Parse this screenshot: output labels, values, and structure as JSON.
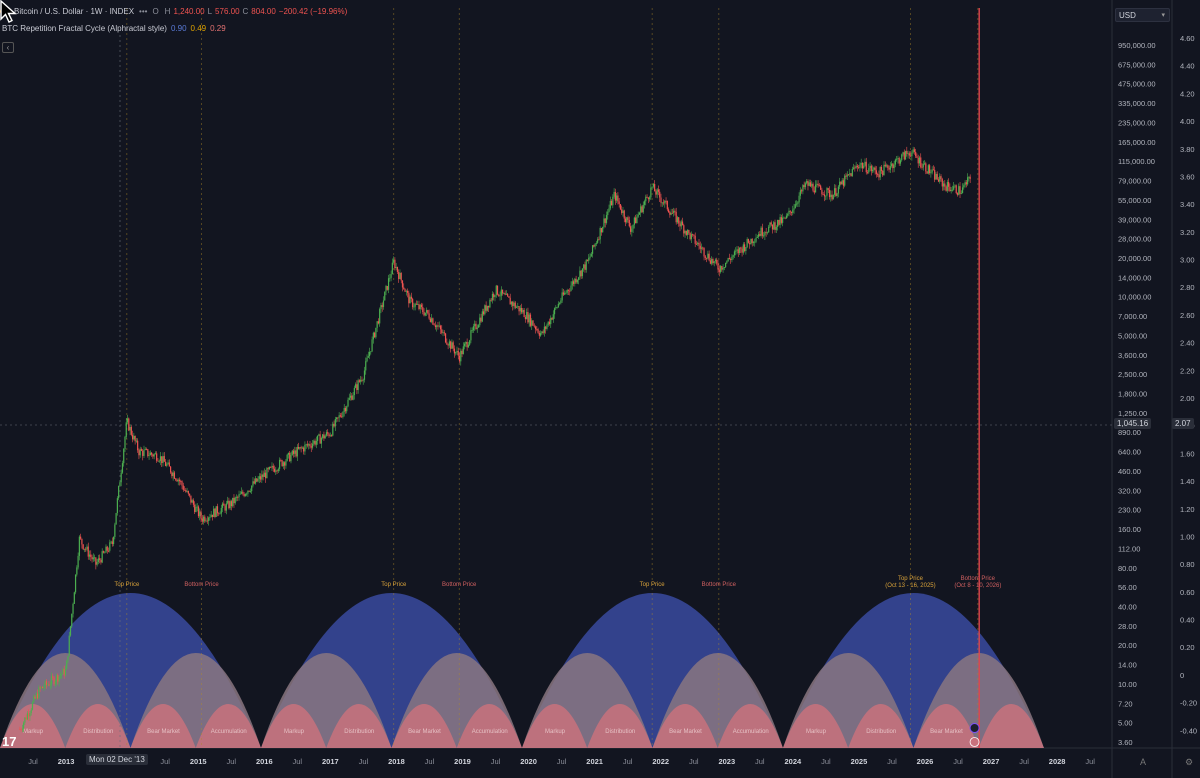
{
  "header": {
    "symbol": "Bitcoin / U.S. Dollar · 1W · INDEX",
    "more": "•••",
    "o_prefix": "O",
    "o_value": "",
    "h_prefix": "H",
    "h_value": "1,240.00",
    "l_prefix": "L",
    "l_value": "576.00",
    "c_prefix": "C",
    "c_value": "804.00",
    "change": "−200.42 (−19.96%)"
  },
  "indicator": {
    "name": "BTC Repetition Fractal Cycle (Alphractal style)",
    "v1": "0.90",
    "v2": "0.49",
    "v3": "0.29"
  },
  "currency": {
    "label": "USD"
  },
  "colors": {
    "background": "#121520",
    "up": "#4caf50",
    "down": "#ef5350",
    "blue_arc": "#3a4aa0",
    "mid_arc": "#8a7680",
    "pink_arc": "#c9727d",
    "guide": "#b08a28",
    "today_line": "#e0454e"
  },
  "crosshair": {
    "price_label": "1,045.16",
    "osc_label": "2.07",
    "date_label": "Mon 02 Dec '13"
  },
  "chart_data": {
    "type": "line",
    "scale": "log",
    "ylim": [
      3.6,
      950000
    ],
    "price_ticks": [
      "950,000.00",
      "675,000.00",
      "475,000.00",
      "335,000.00",
      "235,000.00",
      "165,000.00",
      "115,000.00",
      "79,000.00",
      "55,000.00",
      "39,000.00",
      "28,000.00",
      "20,000.00",
      "14,000.00",
      "10,000.00",
      "7,000.00",
      "5,000.00",
      "3,600.00",
      "2,500.00",
      "1,800.00",
      "1,250.00",
      "890.00",
      "640.00",
      "460.00",
      "320.00",
      "230.00",
      "160.00",
      "112.00",
      "80.00",
      "56.00",
      "40.00",
      "28.00",
      "20.00",
      "14.00",
      "10.00",
      "7.20",
      "5.00",
      "3.60"
    ],
    "osc_ticks": [
      "4.60",
      "4.40",
      "4.20",
      "4.00",
      "3.80",
      "3.60",
      "3.40",
      "3.20",
      "3.00",
      "2.80",
      "2.60",
      "2.40",
      "2.20",
      "2.00",
      "1.80",
      "1.60",
      "1.40",
      "1.20",
      "1.00",
      "0.80",
      "0.60",
      "0.40",
      "0.20",
      "0",
      "-0.20",
      "-0.40",
      "-0.60"
    ],
    "x_ticks": [
      "Jul",
      "2013",
      "Mon 02 Dec '13",
      "Jul",
      "2015",
      "Jul",
      "2016",
      "Jul",
      "2017",
      "Jul",
      "2018",
      "Jul",
      "2019",
      "Jul",
      "2020",
      "Jul",
      "2021",
      "Jul",
      "2022",
      "Jul",
      "2023",
      "Jul",
      "2024",
      "Jul",
      "2025",
      "Jul",
      "2026",
      "Jul",
      "2027",
      "Jul",
      "2028",
      "Jul"
    ],
    "series": [
      {
        "values": [
          {
            "x": 2012.3,
            "y": 5
          },
          {
            "x": 2012.6,
            "y": 10
          },
          {
            "x": 2013.0,
            "y": 14
          },
          {
            "x": 2013.2,
            "y": 140
          },
          {
            "x": 2013.45,
            "y": 90
          },
          {
            "x": 2013.7,
            "y": 130
          },
          {
            "x": 2013.92,
            "y": 1100
          },
          {
            "x": 2014.1,
            "y": 650
          },
          {
            "x": 2014.4,
            "y": 600
          },
          {
            "x": 2014.7,
            "y": 400
          },
          {
            "x": 2015.05,
            "y": 200
          },
          {
            "x": 2015.5,
            "y": 260
          },
          {
            "x": 2016.0,
            "y": 430
          },
          {
            "x": 2016.5,
            "y": 650
          },
          {
            "x": 2017.0,
            "y": 900
          },
          {
            "x": 2017.5,
            "y": 2500
          },
          {
            "x": 2017.96,
            "y": 18000
          },
          {
            "x": 2018.2,
            "y": 9000
          },
          {
            "x": 2018.5,
            "y": 7000
          },
          {
            "x": 2018.95,
            "y": 3400
          },
          {
            "x": 2019.5,
            "y": 11000
          },
          {
            "x": 2019.95,
            "y": 7200
          },
          {
            "x": 2020.2,
            "y": 5000
          },
          {
            "x": 2020.5,
            "y": 9500
          },
          {
            "x": 2020.9,
            "y": 18000
          },
          {
            "x": 2021.3,
            "y": 58000
          },
          {
            "x": 2021.55,
            "y": 32000
          },
          {
            "x": 2021.87,
            "y": 66000
          },
          {
            "x": 2022.4,
            "y": 30000
          },
          {
            "x": 2022.88,
            "y": 16000
          },
          {
            "x": 2023.5,
            "y": 30000
          },
          {
            "x": 2023.9,
            "y": 38000
          },
          {
            "x": 2024.2,
            "y": 70000
          },
          {
            "x": 2024.6,
            "y": 58000
          },
          {
            "x": 2025.0,
            "y": 100000
          },
          {
            "x": 2025.3,
            "y": 85000
          },
          {
            "x": 2025.78,
            "y": 124000
          },
          {
            "x": 2026.05,
            "y": 90000
          },
          {
            "x": 2026.3,
            "y": 68000
          },
          {
            "x": 2026.55,
            "y": 62000
          },
          {
            "x": 2026.7,
            "y": 80000
          }
        ]
      }
    ],
    "phase_labels": [
      "Markup",
      "Distribution",
      "Bear Market",
      "Accumulation",
      "Markup",
      "Distribution",
      "Bear Market",
      "Accumulation",
      "Markup",
      "Distribution",
      "Bear Market",
      "Accumulation",
      "Markup",
      "Distribution",
      "Bear Market"
    ],
    "events": [
      {
        "label": "Top Price",
        "x": 2013.92
      },
      {
        "label": "Bottom Price",
        "x": 2015.05
      },
      {
        "label": "Top Price",
        "x": 2017.96
      },
      {
        "label": "Bottom Price",
        "x": 2018.95
      },
      {
        "label": "Top Price",
        "x": 2021.87
      },
      {
        "label": "Bottom Price",
        "x": 2022.88
      },
      {
        "label": "Top Price",
        "sub": "(Oct 13 - 16, 2025)",
        "x": 2025.78
      },
      {
        "label": "Bottom Price",
        "sub": "(Oct 8 - 10, 2026)",
        "x": 2026.8
      }
    ]
  }
}
